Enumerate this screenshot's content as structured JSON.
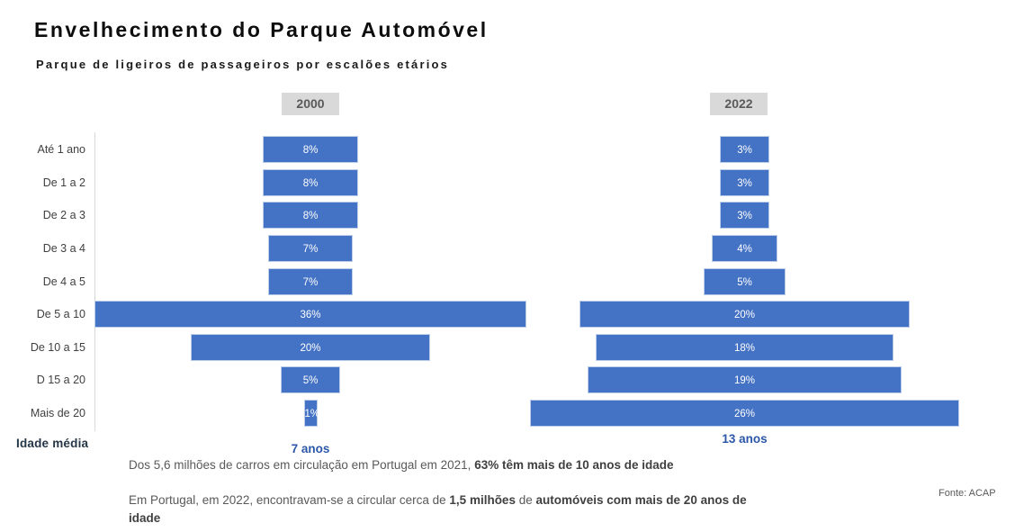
{
  "header": {
    "title": "Envelhecimento do Parque Automóvel",
    "subtitle": "Parque de ligeiros de passageiros por escalões etários"
  },
  "chart_data": {
    "type": "bar",
    "variant": "centered-funnel",
    "orientation": "horizontal",
    "value_suffix": "%",
    "bar_color": "#4472C4",
    "categories": [
      "Até 1 ano",
      "De 1 a 2",
      "De 2 a 3",
      "De 3 a 4",
      "De 4 a 5",
      "De 5 a 10",
      "De 10 a 15",
      "D 15 a 20",
      "Mais de 20"
    ],
    "series": [
      {
        "name": "2000",
        "values": [
          8,
          8,
          8,
          7,
          7,
          36,
          20,
          5,
          1
        ],
        "axis_max": 36,
        "avg_label": "7 anos"
      },
      {
        "name": "2022",
        "values": [
          3,
          3,
          3,
          4,
          5,
          20,
          18,
          19,
          26
        ],
        "axis_max": 26,
        "avg_label": "13 anos"
      }
    ],
    "legend_position": "top",
    "grid": false
  },
  "footer": {
    "avg_title": "Idade média",
    "note1": [
      {
        "t": "Dos 5,6 milhões de carros em circulação em Portugal em 2021, ",
        "b": 0
      },
      {
        "t": "63% têm mais de 10 anos de idade",
        "b": 1
      }
    ],
    "note2_line1": [
      {
        "t": "Em Portugal, em 2022, encontravam-se a circular cerca de ",
        "b": 0
      },
      {
        "t": "1,5 milhões",
        "b": 1
      },
      {
        "t": " de ",
        "b": 0
      },
      {
        "t": "automóveis com mais de 20 anos de",
        "b": 1
      }
    ],
    "note2_line2": [
      {
        "t": "idade",
        "b": 1
      }
    ],
    "source": "Fonte: ACAP"
  },
  "colors": {
    "bar": "#4472C4",
    "year_label_bg": "#D9D9D9",
    "year_label_text": "#595959",
    "category_text": "#404040",
    "avg_title_text": "#253746",
    "avg_value_text": "#2B57A8",
    "note_text": "#595959",
    "axis_line": "#D9D9D9"
  }
}
